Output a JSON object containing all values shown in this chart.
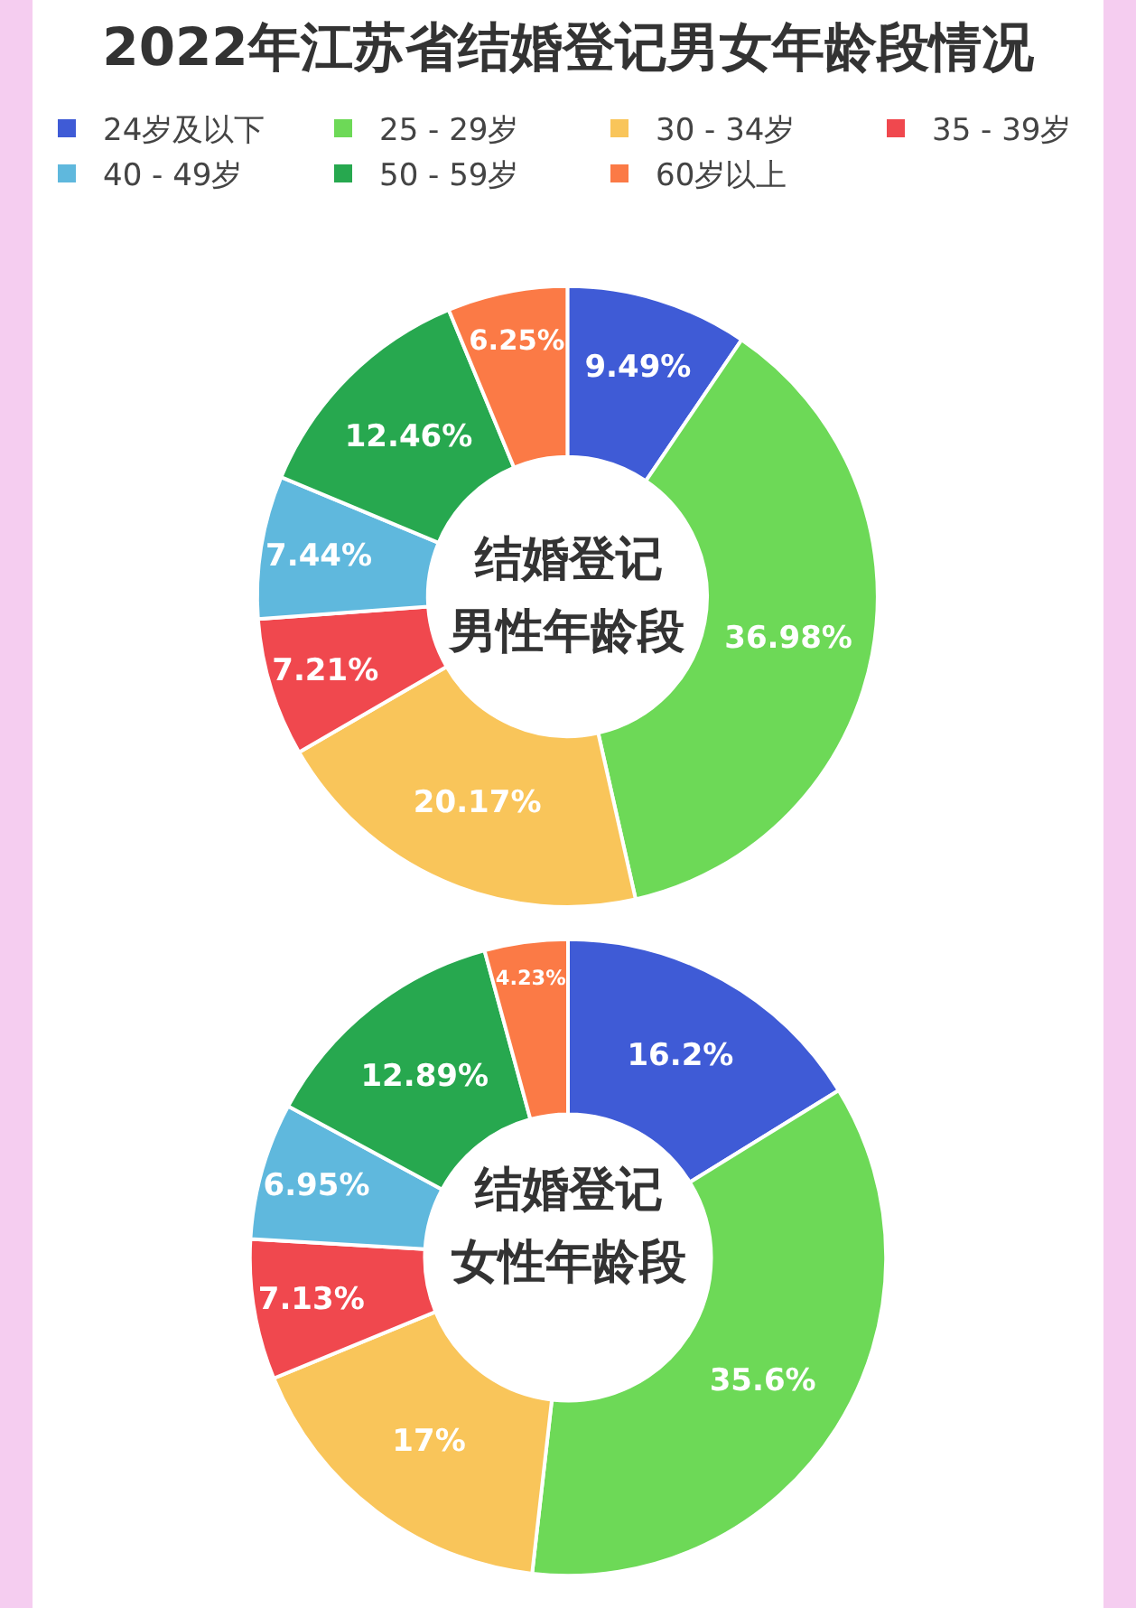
{
  "chart_data": {
    "type": "donut",
    "title": "2022年江苏省结婚登记男女年龄段情况",
    "legend": "top",
    "annotations": [
      "结婚登记",
      "男性年龄段",
      "结婚登记",
      "女性年龄段"
    ],
    "categories": [
      "24岁及以下",
      "25 - 29岁",
      "30 - 34岁",
      "35 - 39岁",
      "40 - 49岁",
      "50 - 59岁",
      "60岁以上"
    ],
    "colors": [
      "#3f5bd6",
      "#6dd957",
      "#f9c55a",
      "#f0484e",
      "#5fb8dd",
      "#27a84f",
      "#fb7a46"
    ],
    "series": [
      {
        "values": [
          9.49,
          36.98,
          20.17,
          7.21,
          7.44,
          12.46,
          6.25
        ],
        "value_labels": [
          "9.49%",
          "36.98%",
          "20.17%",
          "7.21%",
          "7.44%",
          "12.46%",
          "6.25%"
        ]
      },
      {
        "values": [
          16.2,
          35.6,
          17,
          7.13,
          6.95,
          12.89,
          4.23
        ],
        "value_labels": [
          "16.2%",
          "35.6%",
          "17%",
          "7.13%",
          "6.95%",
          "12.89%",
          "4.23%"
        ]
      }
    ]
  }
}
